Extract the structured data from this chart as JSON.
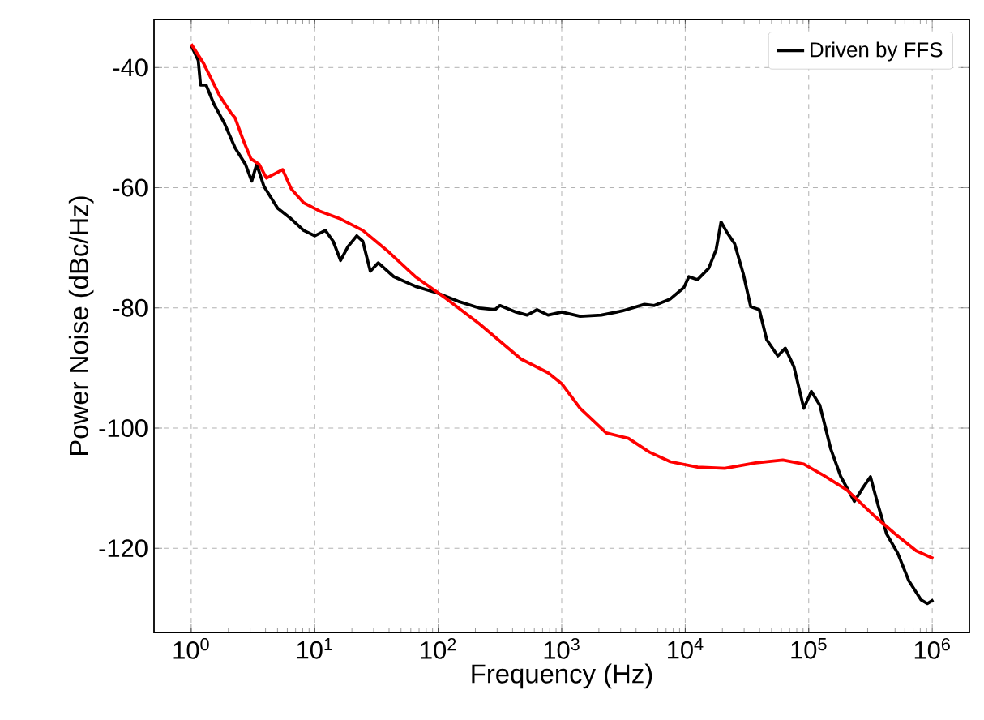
{
  "chart_data": {
    "type": "line",
    "xlabel": "Frequency (Hz)",
    "ylabel": "Power Noise (dBc/Hz)",
    "log": "x",
    "grid": true,
    "legend": "top right",
    "marker": "none",
    "line_style": "solid",
    "xlim": [
      0.5,
      2000000
    ],
    "ylim": [
      -134,
      -32
    ],
    "xticks": [
      {
        "value": 1,
        "label": "10$^{0}$"
      },
      {
        "value": 10,
        "label": "10$^{1}$"
      },
      {
        "value": 100,
        "label": "10$^{2}$"
      },
      {
        "value": 1000,
        "label": "10$^{3}$"
      },
      {
        "value": 10000,
        "label": "10$^{4}$"
      },
      {
        "value": 100000,
        "label": "10$^{5}$"
      },
      {
        "value": 1000000,
        "label": "10$^{6}$"
      }
    ],
    "yticks": [
      -40,
      -60,
      -80,
      -100,
      -120
    ],
    "series": [
      {
        "name": "Driven by FFS",
        "color": "#000000",
        "x": [
          1,
          1.14,
          1.19,
          1.32,
          1.53,
          1.86,
          2.27,
          2.75,
          3.09,
          3.39,
          3.89,
          5.01,
          6.46,
          8.13,
          10,
          12.2,
          14.1,
          16.2,
          18.6,
          21.9,
          24.5,
          28.2,
          32.7,
          43.7,
          65.3,
          97.7,
          145,
          214,
          288,
          316,
          427,
          525,
          631,
          776,
          1000,
          1410,
          2090,
          3090,
          4680,
          5620,
          7590,
          9770,
          10700,
          12600,
          15500,
          17800,
          19500,
          21900,
          25100,
          29500,
          33900,
          39800,
          45700,
          56200,
          64600,
          75900,
          91200,
          105000,
          123000,
          151000,
          182000,
          234000,
          275000,
          316000,
          363000,
          427000,
          525000,
          646000,
          813000,
          912000,
          1020000
        ],
        "values": [
          -36.3,
          -38.8,
          -42.9,
          -42.9,
          -46.1,
          -49.3,
          -53.4,
          -56.1,
          -58.9,
          -56.1,
          -59.8,
          -63.4,
          -65.2,
          -67.1,
          -68.0,
          -67.1,
          -68.9,
          -72.1,
          -69.8,
          -68.0,
          -68.9,
          -73.9,
          -72.5,
          -74.8,
          -76.4,
          -77.5,
          -78.9,
          -80.0,
          -80.3,
          -79.6,
          -80.7,
          -81.2,
          -80.3,
          -81.2,
          -80.7,
          -81.4,
          -81.2,
          -80.5,
          -79.4,
          -79.6,
          -78.5,
          -76.6,
          -74.8,
          -75.3,
          -73.4,
          -70.3,
          -65.7,
          -67.5,
          -69.3,
          -74.3,
          -79.8,
          -80.3,
          -85.3,
          -88.0,
          -86.7,
          -89.8,
          -96.7,
          -93.9,
          -96.2,
          -103.5,
          -108.1,
          -112.2,
          -109.9,
          -108.1,
          -112.7,
          -117.6,
          -120.8,
          -125.4,
          -128.6,
          -129.2,
          -128.6
        ]
      },
      {
        "color": "#ff0000",
        "x": [
          1,
          1.26,
          1.7,
          2.09,
          2.27,
          2.63,
          3.05,
          3.55,
          4.07,
          5.5,
          6.46,
          8.13,
          11.0,
          16.2,
          24.5,
          39.8,
          65.3,
          117,
          214,
          468,
          776,
          1000,
          1410,
          2290,
          3470,
          5130,
          7590,
          12600,
          20900,
          37200,
          61700,
          91200,
          138000,
          204000,
          331000,
          501000,
          741000,
          1020000
        ],
        "values": [
          -36.1,
          -39.3,
          -44.7,
          -47.5,
          -48.4,
          -52.0,
          -55.2,
          -56.1,
          -58.4,
          -57.0,
          -60.2,
          -62.5,
          -63.9,
          -65.2,
          -67.1,
          -70.7,
          -74.8,
          -78.5,
          -82.6,
          -88.5,
          -90.8,
          -92.6,
          -96.7,
          -100.8,
          -101.7,
          -104.0,
          -105.6,
          -106.5,
          -106.7,
          -105.8,
          -105.3,
          -106.0,
          -108.1,
          -110.3,
          -114.4,
          -117.6,
          -120.4,
          -121.7
        ]
      }
    ]
  }
}
